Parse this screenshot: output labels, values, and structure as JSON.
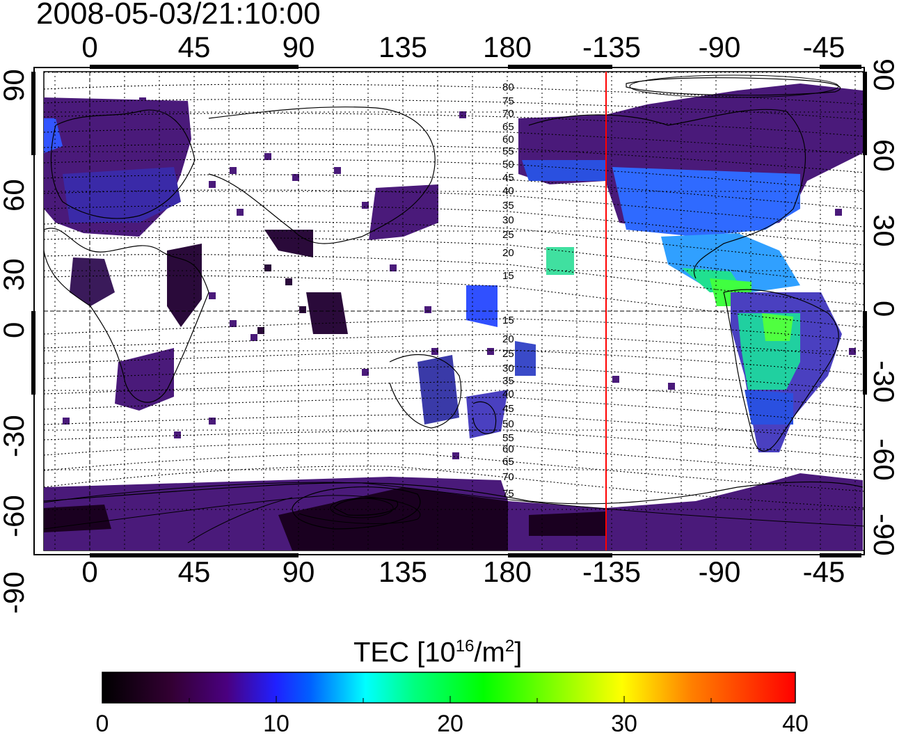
{
  "timestamp": "2008-05-03/21:10:00",
  "lon_ticks": [
    "0",
    "45",
    "90",
    "135",
    "180",
    "-135",
    "-90",
    "-45"
  ],
  "lat_ticks": [
    "90",
    "60",
    "30",
    "0",
    "-30",
    "-60",
    "-90"
  ],
  "contour_labels": [
    "80",
    "75",
    "70",
    "65",
    "60",
    "55",
    "50",
    "45",
    "40",
    "35",
    "30",
    "25",
    "20",
    "15",
    "15",
    "20",
    "25",
    "30",
    "35",
    "40",
    "45",
    "50",
    "55",
    "60",
    "65",
    "70",
    "75"
  ],
  "colorbar": {
    "title_prefix": "TEC  [10",
    "title_exp1": "16",
    "title_mid": "/m",
    "title_exp2": "2",
    "title_suffix": "]",
    "ticks": [
      "0",
      "10",
      "20",
      "30",
      "40"
    ],
    "colors": [
      "#000000",
      "#330033",
      "#4a0080",
      "#2020ff",
      "#0060ff",
      "#00ffff",
      "#00ff60",
      "#00ff00",
      "#ffff00",
      "#ff8000",
      "#ff0000"
    ]
  },
  "colors": {
    "terminator": "#ff0000",
    "no_data": "#ffffff",
    "low_tec": "#4a1a7a",
    "dark_tec": "#1a0020"
  }
}
